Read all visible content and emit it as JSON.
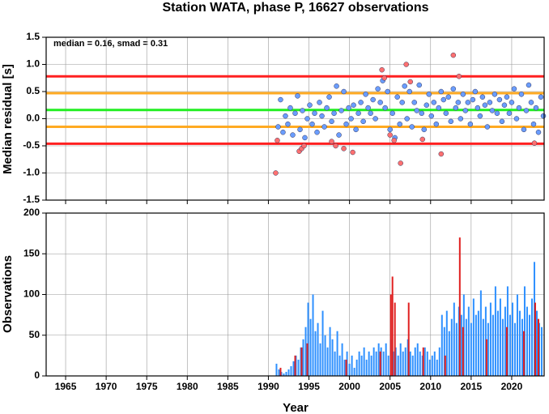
{
  "chart_data": [
    {
      "type": "scatter",
      "title": "Station WATA, phase P, 16627 observations",
      "annotation": "median = 0.16, smad = 0.31",
      "ylabel": "Median residual [s]",
      "xlim": [
        1962.6,
        2024
      ],
      "xticks": [
        1965,
        1970,
        1975,
        1980,
        1985,
        1990,
        1995,
        2000,
        2005,
        2010,
        2015,
        2020
      ],
      "ylim": [
        -1.5,
        1.5
      ],
      "yticks": [
        -1.5,
        {
          "value": -1.0,
          "label": "-1.0"
        },
        -0.5,
        {
          "value": 0.0,
          "label": "0.0"
        },
        0.5,
        {
          "value": 1.0,
          "label": "1.0"
        },
        1.5
      ],
      "grid": true,
      "hlines": [
        {
          "value": 0.78,
          "color": "#ff2020"
        },
        {
          "value": 0.47,
          "color": "#ffaa22"
        },
        {
          "value": 0.16,
          "color": "#22ee22"
        },
        {
          "value": -0.15,
          "color": "#ffaa22"
        },
        {
          "value": -0.46,
          "color": "#ff2020"
        }
      ],
      "series": [
        {
          "color": "#6a9dff",
          "x": [
            1991.2,
            1991.5,
            1991.8,
            1992.1,
            1992.4,
            1992.7,
            1993.0,
            1993.3,
            1993.6,
            1993.9,
            1994.2,
            1994.5,
            1994.8,
            1995.1,
            1995.4,
            1995.7,
            1996.0,
            1996.3,
            1996.6,
            1996.9,
            1997.2,
            1997.5,
            1997.8,
            1998.1,
            1998.4,
            1998.7,
            1999.0,
            1999.3,
            1999.6,
            1999.9,
            2000.2,
            2000.5,
            2000.8,
            2001.1,
            2001.4,
            2001.7,
            2002.0,
            2002.3,
            2002.6,
            2002.9,
            2003.2,
            2003.5,
            2003.8,
            2004.1,
            2004.4,
            2004.7,
            2005.0,
            2005.3,
            2005.6,
            2005.9,
            2006.2,
            2006.5,
            2006.8,
            2007.1,
            2007.4,
            2007.7,
            2008.0,
            2008.3,
            2008.6,
            2008.9,
            2009.2,
            2009.5,
            2009.8,
            2010.1,
            2010.4,
            2010.7,
            2011.0,
            2011.3,
            2011.6,
            2011.9,
            2012.2,
            2012.5,
            2012.8,
            2013.1,
            2013.4,
            2013.7,
            2014.0,
            2014.3,
            2014.6,
            2014.9,
            2015.2,
            2015.5,
            2015.8,
            2016.1,
            2016.4,
            2016.7,
            2017.0,
            2017.3,
            2017.6,
            2017.9,
            2018.2,
            2018.5,
            2018.8,
            2019.1,
            2019.4,
            2019.7,
            2020.0,
            2020.3,
            2020.6,
            2020.9,
            2021.2,
            2021.5,
            2021.8,
            2022.1,
            2022.4,
            2022.7,
            2023.0,
            2023.3,
            2023.6,
            2023.9
          ],
          "values": [
            -0.15,
            0.35,
            -0.25,
            0.05,
            -0.1,
            0.2,
            -0.3,
            0.1,
            0.42,
            -0.2,
            0.15,
            -0.35,
            0.0,
            0.25,
            -0.1,
            0.1,
            -0.25,
            0.3,
            0.05,
            -0.15,
            0.2,
            0.4,
            -0.05,
            0.1,
            0.6,
            -0.3,
            0.15,
            0.5,
            -0.1,
            0.2,
            0.0,
            0.25,
            -0.2,
            0.1,
            0.3,
            -0.05,
            0.45,
            0.2,
            0.1,
            0.35,
            0.0,
            0.55,
            0.3,
            0.7,
            0.2,
            0.5,
            -0.2,
            0.1,
            -0.35,
            0.4,
            -0.1,
            0.3,
            0.6,
            0.0,
            0.5,
            -0.15,
            0.3,
            0.15,
            0.62,
            0.1,
            -0.2,
            0.25,
            0.45,
            0.05,
            0.3,
            -0.1,
            0.2,
            0.5,
            0.35,
            0.1,
            0.4,
            -0.05,
            0.55,
            0.2,
            0.3,
            0.0,
            0.45,
            0.15,
            0.3,
            -0.1,
            0.35,
            0.5,
            0.2,
            0.05,
            0.4,
            0.25,
            -0.15,
            0.3,
            0.15,
            0.45,
            0.1,
            0.35,
            -0.05,
            0.25,
            0.4,
            0.1,
            0.3,
            0.55,
            0.0,
            0.2,
            0.45,
            -0.2,
            0.15,
            0.62,
            0.3,
            -0.1,
            0.2,
            -0.25,
            0.4,
            0.05
          ]
        },
        {
          "color": "#ff7070",
          "x": [
            1990.9,
            1991.1,
            1993.8,
            1994.1,
            1994.4,
            1997.8,
            1998.3,
            1999.3,
            2000.4,
            2004.0,
            2004.3,
            2005.0,
            2005.5,
            2006.3,
            2007.0,
            2007.5,
            2009.0,
            2011.3,
            2012.8,
            2013.5,
            2022.8
          ],
          "values": [
            -1.0,
            -0.4,
            -0.6,
            -0.55,
            -0.5,
            -0.42,
            -0.5,
            -0.55,
            -0.62,
            0.9,
            0.75,
            -0.3,
            -0.4,
            -0.82,
            1.0,
            0.68,
            -0.38,
            -0.65,
            1.17,
            0.78,
            -0.45
          ]
        }
      ]
    },
    {
      "type": "bar",
      "ylabel": "Observations",
      "xlabel": "Year",
      "xlim": [
        1962.6,
        2024
      ],
      "xticks": [
        1965,
        1970,
        1975,
        1980,
        1985,
        1990,
        1995,
        2000,
        2005,
        2010,
        2015,
        2020
      ],
      "ylim": [
        0,
        200
      ],
      "yticks": [
        0,
        50,
        100,
        150,
        200
      ],
      "grid": true,
      "series": [
        {
          "color": "#2e90ff",
          "x": [
            1991.0,
            1991.3,
            1991.6,
            1991.9,
            1992.2,
            1992.5,
            1992.8,
            1993.1,
            1993.4,
            1993.7,
            1994.0,
            1994.3,
            1994.6,
            1994.9,
            1995.2,
            1995.5,
            1995.8,
            1996.1,
            1996.4,
            1996.7,
            1997.0,
            1997.3,
            1997.6,
            1997.9,
            1998.2,
            1998.5,
            1998.8,
            1999.1,
            1999.4,
            1999.7,
            2000.0,
            2000.3,
            2000.6,
            2000.9,
            2001.2,
            2001.5,
            2001.8,
            2002.1,
            2002.4,
            2002.7,
            2003.0,
            2003.3,
            2003.6,
            2003.9,
            2004.2,
            2004.5,
            2004.8,
            2005.1,
            2005.4,
            2005.7,
            2006.0,
            2006.3,
            2006.6,
            2006.9,
            2007.2,
            2007.5,
            2007.8,
            2008.1,
            2008.4,
            2008.7,
            2009.0,
            2009.3,
            2009.6,
            2009.9,
            2010.2,
            2010.5,
            2010.8,
            2011.1,
            2011.4,
            2011.7,
            2012.0,
            2012.3,
            2012.6,
            2012.9,
            2013.2,
            2013.5,
            2013.8,
            2014.1,
            2014.4,
            2014.7,
            2015.0,
            2015.3,
            2015.6,
            2015.9,
            2016.2,
            2016.5,
            2016.8,
            2017.1,
            2017.4,
            2017.7,
            2018.0,
            2018.3,
            2018.6,
            2018.9,
            2019.2,
            2019.5,
            2019.8,
            2020.1,
            2020.4,
            2020.7,
            2021.0,
            2021.3,
            2021.6,
            2021.9,
            2022.2,
            2022.5,
            2022.8,
            2023.1,
            2023.4,
            2023.7
          ],
          "values": [
            15,
            8,
            5,
            3,
            5,
            8,
            12,
            18,
            25,
            20,
            35,
            45,
            60,
            90,
            70,
            100,
            55,
            65,
            40,
            80,
            50,
            35,
            60,
            45,
            30,
            55,
            25,
            40,
            20,
            30,
            15,
            25,
            10,
            20,
            30,
            25,
            35,
            20,
            30,
            25,
            35,
            30,
            40,
            35,
            30,
            40,
            25,
            45,
            30,
            35,
            25,
            40,
            30,
            35,
            45,
            30,
            25,
            35,
            40,
            30,
            25,
            35,
            30,
            20,
            25,
            30,
            20,
            35,
            75,
            60,
            80,
            55,
            70,
            90,
            65,
            85,
            75,
            100,
            70,
            85,
            65,
            95,
            75,
            80,
            105,
            70,
            85,
            65,
            90,
            75,
            110,
            80,
            95,
            70,
            85,
            110,
            75,
            90,
            65,
            100,
            80,
            70,
            110,
            85,
            75,
            95,
            140,
            80,
            65,
            60
          ]
        },
        {
          "color": "#e02020",
          "x": [
            1991.5,
            1993.3,
            1994.1,
            1994.8,
            1999.6,
            2003.8,
            2005.1,
            2005.3,
            2005.6,
            2007.3,
            2009.1,
            2011.8,
            2013.6,
            2014.0,
            2016.9,
            2019.4,
            2021.5,
            2022.9,
            2023.3
          ],
          "values": [
            10,
            25,
            35,
            40,
            20,
            30,
            100,
            122,
            90,
            90,
            35,
            25,
            170,
            60,
            45,
            60,
            55,
            90,
            70
          ]
        }
      ]
    }
  ]
}
